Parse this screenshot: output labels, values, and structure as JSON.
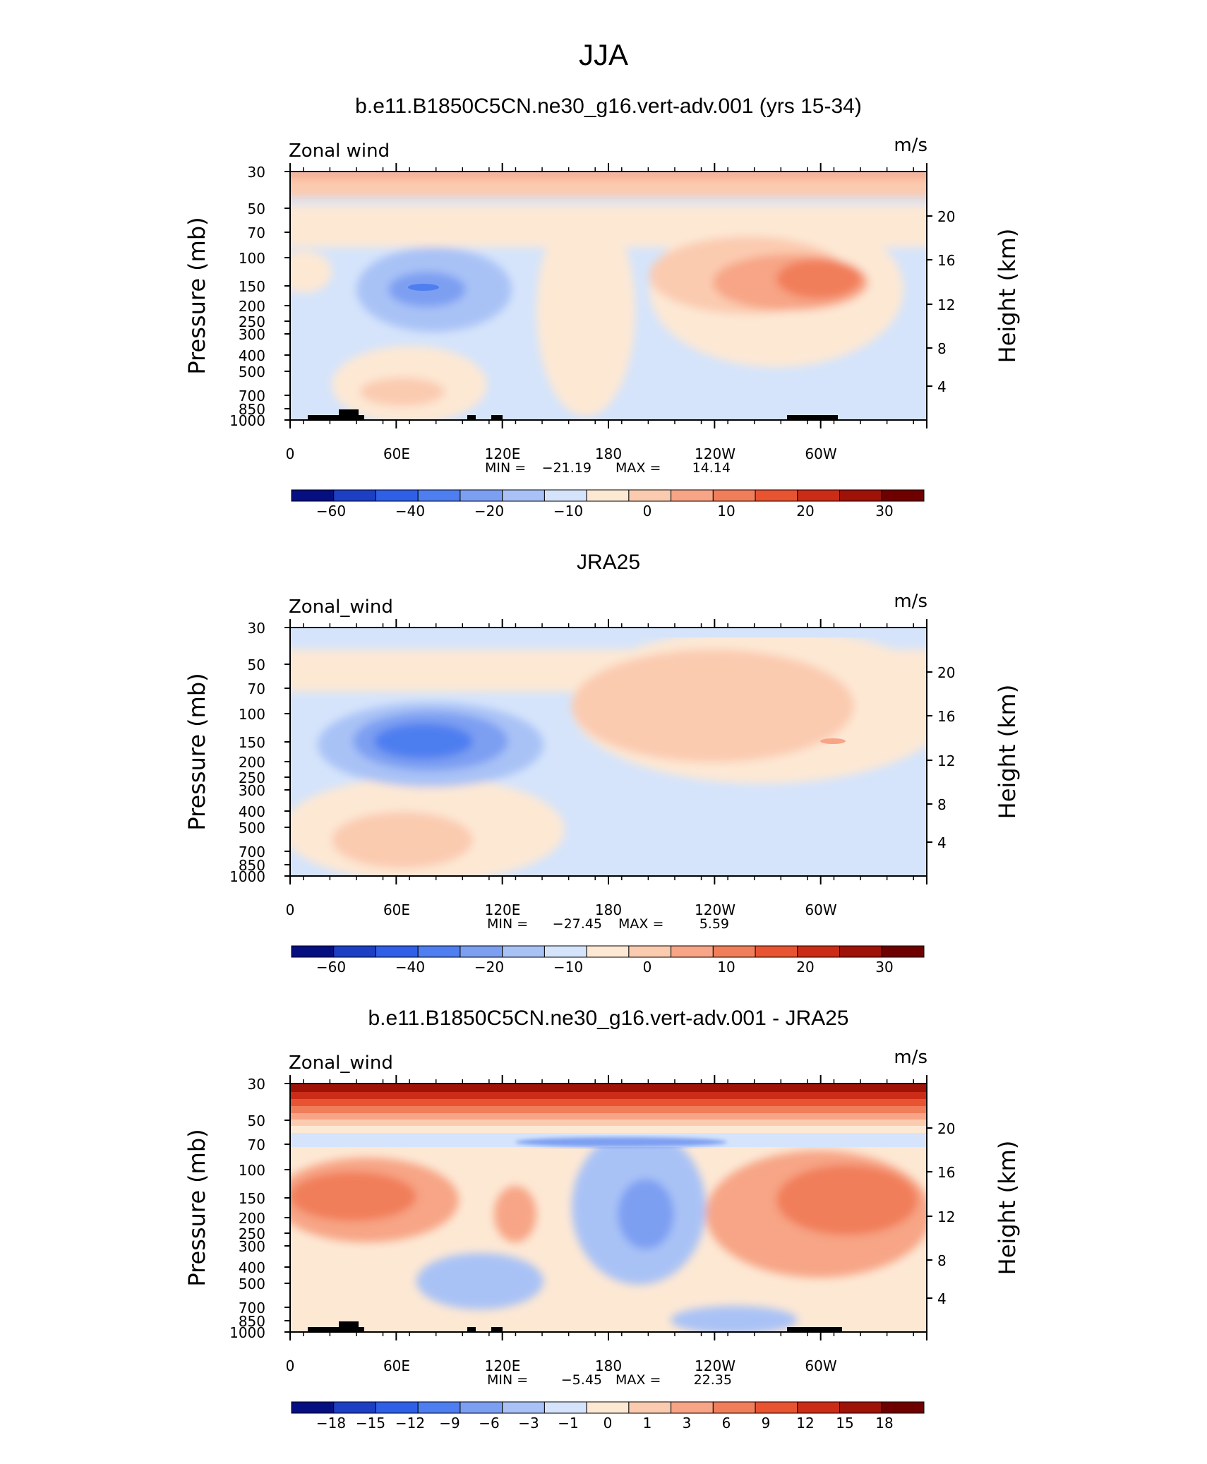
{
  "figure_title": "JJA",
  "chart_data": [
    {
      "type": "contour",
      "panel_title": "b.e11.B1850C5CN.ne30_g16.vert-adv.001 (yrs 15-34)",
      "left_label": "Zonal wind",
      "units": "m/s",
      "ylabel": "Pressure  (mb)",
      "y2label": "Height  (km)",
      "x_ticks": [
        "0",
        "60E",
        "120E",
        "180",
        "120W",
        "60W"
      ],
      "y_ticks": [
        "30",
        "50",
        "70",
        "100",
        "150",
        "200",
        "250",
        "300",
        "400",
        "500",
        "700",
        "850",
        "1000"
      ],
      "y2_ticks": [
        "20",
        "16",
        "12",
        "8",
        "4"
      ],
      "min_label": "MIN =",
      "min_value": "−21.19",
      "max_label": "MAX =",
      "max_value": "14.14",
      "colorbar_ticks": [
        "−60",
        "−40",
        "−20",
        "−10",
        "0",
        "10",
        "20",
        "30"
      ],
      "colorbar_colors": [
        "#060f80",
        "#1c3fc4",
        "#2f5fe6",
        "#4e7ef0",
        "#7d9ff2",
        "#a9c2f6",
        "#d5e4fb",
        "#fde8d4",
        "#fbcbb0",
        "#f7a586",
        "#f17e5a",
        "#e85431",
        "#cb2c17",
        "#9e1208",
        "#6e0000"
      ]
    },
    {
      "type": "contour",
      "panel_title": "JRA25",
      "left_label": "Zonal_wind",
      "units": "m/s",
      "ylabel": "Pressure  (mb)",
      "y2label": "Height  (km)",
      "x_ticks": [
        "0",
        "60E",
        "120E",
        "180",
        "120W",
        "60W"
      ],
      "y_ticks": [
        "30",
        "50",
        "70",
        "100",
        "150",
        "200",
        "250",
        "300",
        "400",
        "500",
        "700",
        "850",
        "1000"
      ],
      "y2_ticks": [
        "20",
        "16",
        "12",
        "8",
        "4"
      ],
      "min_label": "MIN =",
      "min_value": "−27.45",
      "max_label": "MAX =",
      "max_value": "5.59",
      "colorbar_ticks": [
        "−60",
        "−40",
        "−20",
        "−10",
        "0",
        "10",
        "20",
        "30"
      ],
      "colorbar_colors": [
        "#060f80",
        "#1c3fc4",
        "#2f5fe6",
        "#4e7ef0",
        "#7d9ff2",
        "#a9c2f6",
        "#d5e4fb",
        "#fde8d4",
        "#fbcbb0",
        "#f7a586",
        "#f17e5a",
        "#e85431",
        "#cb2c17",
        "#9e1208",
        "#6e0000"
      ]
    },
    {
      "type": "contour",
      "panel_title": "b.e11.B1850C5CN.ne30_g16.vert-adv.001 - JRA25",
      "left_label": "Zonal_wind",
      "units": "m/s",
      "ylabel": "Pressure  (mb)",
      "y2label": "Height  (km)",
      "x_ticks": [
        "0",
        "60E",
        "120E",
        "180",
        "120W",
        "60W"
      ],
      "y_ticks": [
        "30",
        "50",
        "70",
        "100",
        "150",
        "200",
        "250",
        "300",
        "400",
        "500",
        "700",
        "850",
        "1000"
      ],
      "y2_ticks": [
        "20",
        "16",
        "12",
        "8",
        "4"
      ],
      "min_label": "MIN =",
      "min_value": "−5.45",
      "max_label": "MAX =",
      "max_value": "22.35",
      "colorbar_ticks": [
        "−18",
        "−15",
        "−12",
        "−9",
        "−6",
        "−3",
        "−1",
        "0",
        "1",
        "3",
        "6",
        "9",
        "12",
        "15",
        "18"
      ],
      "colorbar_colors": [
        "#060f80",
        "#1c3fc4",
        "#2f5fe6",
        "#4e7ef0",
        "#7d9ff2",
        "#a9c2f6",
        "#d5e4fb",
        "#fde8d4",
        "#fbcbb0",
        "#f7a586",
        "#f17e5a",
        "#e85431",
        "#cb2c17",
        "#9e1208",
        "#6e0000"
      ]
    }
  ]
}
